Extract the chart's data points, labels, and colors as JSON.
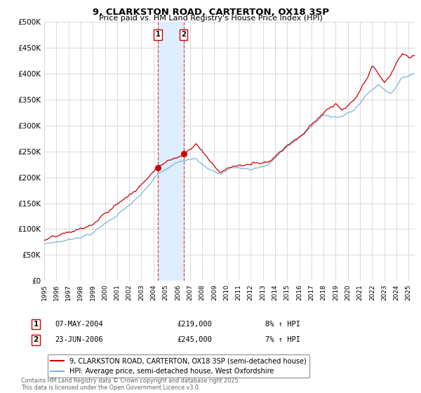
{
  "title_line1": "9, CLARKSTON ROAD, CARTERTON, OX18 3SP",
  "title_line2": "Price paid vs. HM Land Registry's House Price Index (HPI)",
  "legend_line1": "9, CLARKSTON ROAD, CARTERTON, OX18 3SP (semi-detached house)",
  "legend_line2": "HPI: Average price, semi-detached house, West Oxfordshire",
  "transaction1_date": "07-MAY-2004",
  "transaction1_price": "£219,000",
  "transaction1_hpi": "8% ↑ HPI",
  "transaction1_year": 2004.35,
  "transaction1_value": 219000,
  "transaction2_date": "23-JUN-2006",
  "transaction2_price": "£245,000",
  "transaction2_hpi": "7% ↑ HPI",
  "transaction2_year": 2006.47,
  "transaction2_value": 245000,
  "hpi_color": "#7ab5d8",
  "price_color": "#cc0000",
  "marker_color": "#cc0000",
  "vline_color": "#ee4444",
  "shading_color": "#dceeff",
  "grid_color": "#cccccc",
  "background_color": "#ffffff",
  "ylim": [
    0,
    500000
  ],
  "yticks": [
    0,
    50000,
    100000,
    150000,
    200000,
    250000,
    300000,
    350000,
    400000,
    450000,
    500000
  ],
  "footnote": "Contains HM Land Registry data © Crown copyright and database right 2025.\nThis data is licensed under the Open Government Licence v3.0.",
  "start_year": 1995,
  "end_year": 2025
}
